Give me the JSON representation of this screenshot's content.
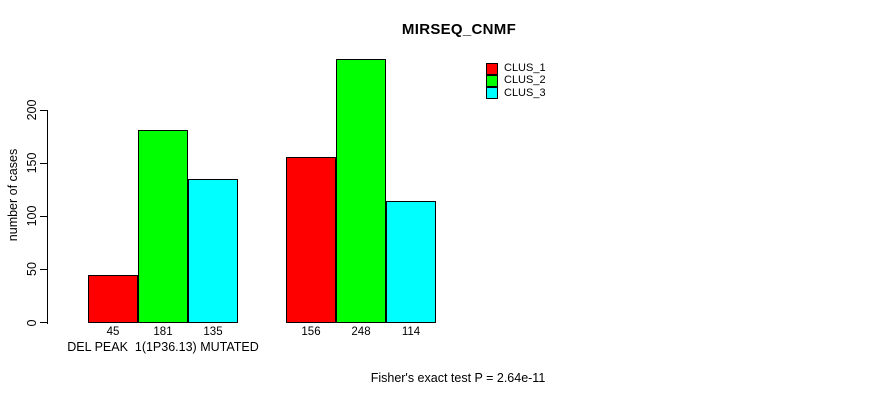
{
  "chart_data": {
    "type": "bar",
    "title": "MIRSEQ_CNMF",
    "ylabel": "number of cases",
    "xlabel": "",
    "yticks": [
      0,
      50,
      100,
      150,
      200
    ],
    "ylim": [
      0,
      260
    ],
    "grid": false,
    "legend_position": "top-right",
    "series": [
      {
        "name": "CLUS_1",
        "color": "#FF0000"
      },
      {
        "name": "CLUS_2",
        "color": "#00FF00"
      },
      {
        "name": "CLUS_3",
        "color": "#00FFFF"
      }
    ],
    "groups": [
      {
        "label": "DEL PEAK  1(1P36.13) MUTATED",
        "values": [
          45,
          181,
          135
        ]
      },
      {
        "label": "",
        "values": [
          156,
          248,
          114
        ]
      }
    ],
    "annotation": "Fisher's exact test P = 2.64e-11"
  }
}
